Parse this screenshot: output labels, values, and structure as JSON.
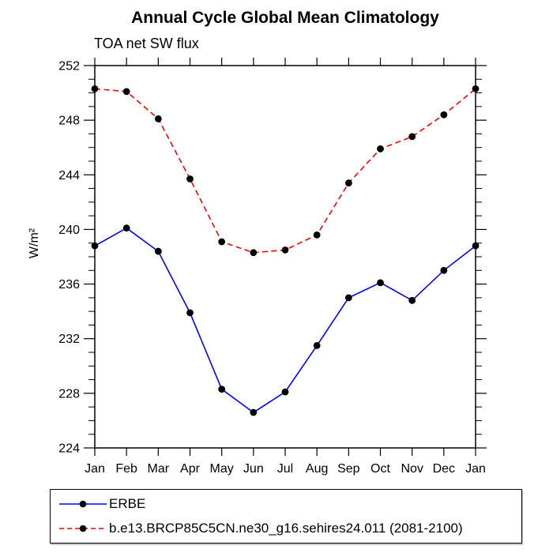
{
  "chart_data": {
    "type": "line",
    "title": "Annual Cycle Global Mean Climatology",
    "subtitle": "TOA net SW flux",
    "ylabel": "W/m²",
    "x_categories": [
      "Jan",
      "Feb",
      "Mar",
      "Apr",
      "May",
      "Jun",
      "Jul",
      "Aug",
      "Sep",
      "Oct",
      "Nov",
      "Dec",
      "Jan"
    ],
    "series": [
      {
        "name": "ERBE",
        "line_color": "#0000ff",
        "line_style": "solid",
        "marker": "filled-circle",
        "marker_color": "#000000",
        "values": [
          238.8,
          240.1,
          238.4,
          233.9,
          228.3,
          226.6,
          228.1,
          231.5,
          235.0,
          236.1,
          234.8,
          237.0,
          238.8
        ]
      },
      {
        "name": "b.e13.BRCP85C5CN.ne30_g16.sehires24.011 (2081-2100)",
        "line_color": "#ff0000",
        "line_style": "dashed",
        "marker": "filled-circle",
        "marker_color": "#000000",
        "values": [
          250.3,
          250.1,
          248.1,
          243.7,
          239.1,
          238.3,
          238.5,
          239.6,
          243.4,
          245.9,
          246.8,
          248.4,
          250.3
        ]
      }
    ],
    "ylim": [
      224,
      252
    ],
    "ytick_major_step": 4,
    "ytick_minor_step": 1,
    "grid": false,
    "legend_position": "bottom-left-box",
    "axis_color": "#000000",
    "background_color": "#ffffff"
  }
}
